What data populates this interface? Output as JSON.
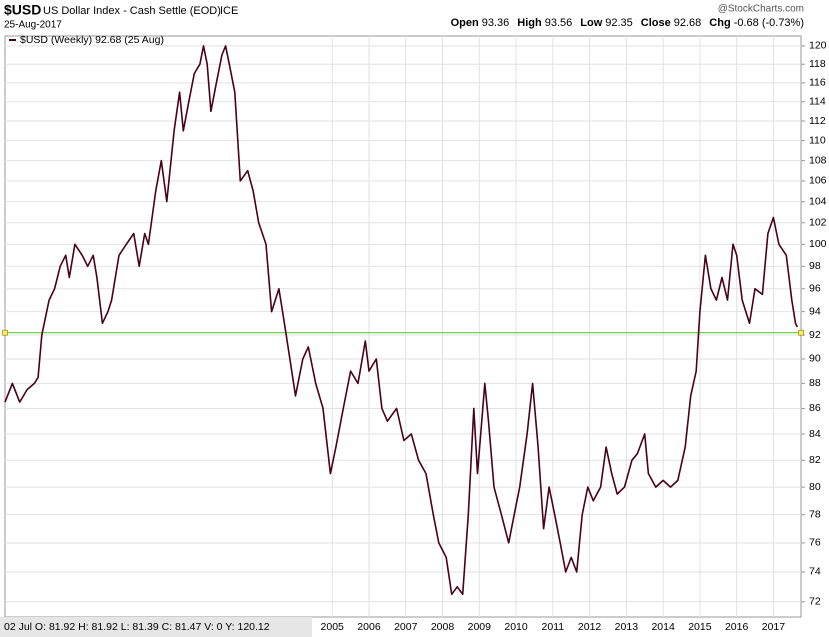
{
  "chart_data": {
    "type": "line",
    "header": {
      "symbol": "$USD",
      "name": "US Dollar Index - Cash Settle (EOD)",
      "exchange": "ICE",
      "date": "25-Aug-2017",
      "source": "@StockCharts.com",
      "quote": [
        {
          "label": "Open",
          "value": "93.36"
        },
        {
          "label": "High",
          "value": "93.56"
        },
        {
          "label": "Low",
          "value": "92.35"
        },
        {
          "label": "Close",
          "value": "92.68"
        },
        {
          "label": "Chg",
          "value": "-0.68 (-0.73%)"
        }
      ]
    },
    "info": "02 Jul O: 81.92 H: 81.92 L: 81.39 C: 81.47 V: 0 Y: 120.12",
    "log_y": true,
    "grid": true,
    "hline": {
      "value": 92.2,
      "color": "#66cc33"
    },
    "xlim": [
      1996.1,
      2017.75
    ],
    "xticks": [
      2005,
      2006,
      2007,
      2008,
      2009,
      2010,
      2011,
      2012,
      2013,
      2014,
      2015,
      2016,
      2017
    ],
    "ylim": [
      71,
      121.1
    ],
    "yticks": [
      72,
      74,
      76,
      78,
      80,
      82,
      84,
      86,
      88,
      90,
      92,
      94,
      96,
      98,
      100,
      102,
      104,
      106,
      108,
      110,
      112,
      114,
      116,
      118,
      120
    ],
    "series": [
      {
        "name": "$USD (Weekly) 92.68 (25 Aug)",
        "color": "#4a0016",
        "x": [
          1996.1,
          1996.3,
          1996.5,
          1996.7,
          1996.9,
          1997.0,
          1997.1,
          1997.3,
          1997.45,
          1997.6,
          1997.75,
          1997.85,
          1998.0,
          1998.2,
          1998.35,
          1998.5,
          1998.6,
          1998.75,
          1998.9,
          1999.0,
          1999.2,
          1999.4,
          1999.6,
          1999.75,
          1999.9,
          2000.0,
          2000.2,
          2000.35,
          2000.5,
          2000.7,
          2000.85,
          2000.95,
          2001.1,
          2001.25,
          2001.4,
          2001.5,
          2001.6,
          2001.7,
          2001.85,
          2002.0,
          2002.1,
          2002.2,
          2002.35,
          2002.5,
          2002.7,
          2002.85,
          2003.0,
          2003.2,
          2003.35,
          2003.55,
          2003.7,
          2003.85,
          2004.0,
          2004.2,
          2004.35,
          2004.55,
          2004.75,
          2004.95,
          2005.1,
          2005.3,
          2005.5,
          2005.7,
          2005.9,
          2006.0,
          2006.2,
          2006.35,
          2006.5,
          2006.75,
          2006.95,
          2007.15,
          2007.35,
          2007.55,
          2007.75,
          2007.9,
          2008.1,
          2008.25,
          2008.4,
          2008.55,
          2008.7,
          2008.85,
          2008.95,
          2009.15,
          2009.25,
          2009.4,
          2009.6,
          2009.8,
          2009.95,
          2010.1,
          2010.3,
          2010.45,
          2010.6,
          2010.75,
          2010.9,
          2011.05,
          2011.2,
          2011.35,
          2011.5,
          2011.65,
          2011.8,
          2011.95,
          2012.1,
          2012.3,
          2012.45,
          2012.6,
          2012.75,
          2012.95,
          2013.15,
          2013.3,
          2013.5,
          2013.6,
          2013.8,
          2014.0,
          2014.2,
          2014.4,
          2014.6,
          2014.75,
          2014.9,
          2015.0,
          2015.15,
          2015.3,
          2015.45,
          2015.6,
          2015.75,
          2015.9,
          2016.0,
          2016.15,
          2016.35,
          2016.5,
          2016.7,
          2016.85,
          2017.0,
          2017.15,
          2017.35,
          2017.5,
          2017.6,
          2017.65
        ],
        "values": [
          86.5,
          88,
          86.5,
          87.5,
          88,
          88.5,
          92,
          95,
          96,
          98,
          99,
          97,
          100,
          99,
          98,
          99,
          97,
          93,
          94,
          95,
          99,
          100,
          101,
          98,
          101,
          100,
          105,
          108,
          104,
          111,
          115,
          111,
          114,
          117,
          118,
          120,
          118,
          113,
          116,
          119,
          120,
          118,
          115,
          106,
          107,
          105,
          102,
          100,
          94,
          96,
          93,
          90,
          87,
          90,
          91,
          88,
          86,
          81,
          83,
          86,
          89,
          88,
          91.5,
          89,
          90,
          86,
          85,
          86,
          83.5,
          84,
          82,
          81,
          78,
          76,
          75,
          72.5,
          73,
          72.5,
          78,
          86,
          81,
          88,
          85,
          80,
          78,
          76,
          78,
          80,
          84,
          88,
          83,
          77,
          80,
          78,
          76,
          74,
          75,
          74,
          78,
          80,
          79,
          80,
          83,
          81,
          79.5,
          80,
          82,
          82.5,
          84,
          81,
          80,
          80.5,
          80,
          80.5,
          83,
          87,
          89,
          94,
          99,
          96,
          95,
          97,
          95,
          100,
          99,
          95,
          93,
          96,
          95.5,
          101,
          102.5,
          100,
          99,
          95,
          93,
          92.68
        ]
      }
    ]
  }
}
